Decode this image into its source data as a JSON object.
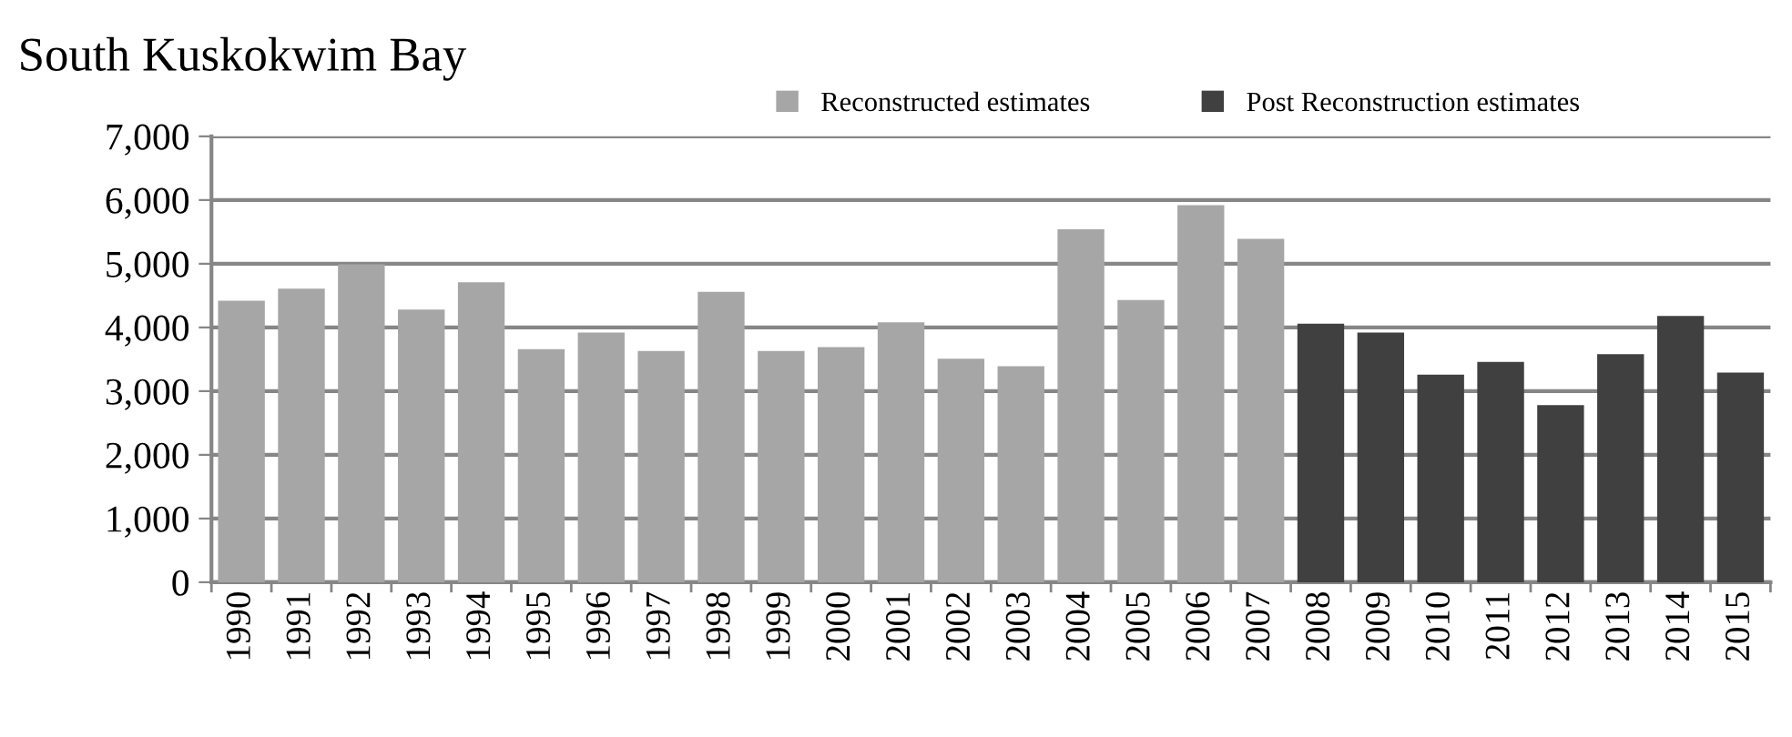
{
  "chart_data": {
    "type": "bar",
    "title": "South Kuskokwim Bay",
    "categories": [
      "1990",
      "1991",
      "1992",
      "1993",
      "1994",
      "1995",
      "1996",
      "1997",
      "1998",
      "1999",
      "2000",
      "2001",
      "2002",
      "2003",
      "2004",
      "2005",
      "2006",
      "2007",
      "2008",
      "2009",
      "2010",
      "2011",
      "2012",
      "2013",
      "2014",
      "2015"
    ],
    "series": [
      {
        "name": "Reconstructed estimates",
        "color": "#a6a6a6",
        "values": [
          4420,
          4610,
          4990,
          4280,
          4710,
          3660,
          3920,
          3630,
          4560,
          3630,
          3690,
          4080,
          3510,
          3390,
          5540,
          4430,
          5920,
          5390,
          null,
          null,
          null,
          null,
          null,
          null,
          null,
          null
        ]
      },
      {
        "name": "Post Reconstruction estimates",
        "color": "#404040",
        "values": [
          null,
          null,
          null,
          null,
          null,
          null,
          null,
          null,
          null,
          null,
          null,
          null,
          null,
          null,
          null,
          null,
          null,
          null,
          4060,
          3920,
          3260,
          3460,
          2780,
          3580,
          4180,
          3290
        ]
      }
    ],
    "ylim": [
      0,
      7000
    ],
    "yticks": [
      {
        "value": 0,
        "label": "0"
      },
      {
        "value": 1000,
        "label": "1,000"
      },
      {
        "value": 2000,
        "label": "2,000"
      },
      {
        "value": 3000,
        "label": "3,000"
      },
      {
        "value": 4000,
        "label": "4,000"
      },
      {
        "value": 5000,
        "label": "5,000"
      },
      {
        "value": 6000,
        "label": "6,000"
      },
      {
        "value": 7000,
        "label": "7,000"
      }
    ],
    "grid": "y",
    "legend": "top"
  }
}
